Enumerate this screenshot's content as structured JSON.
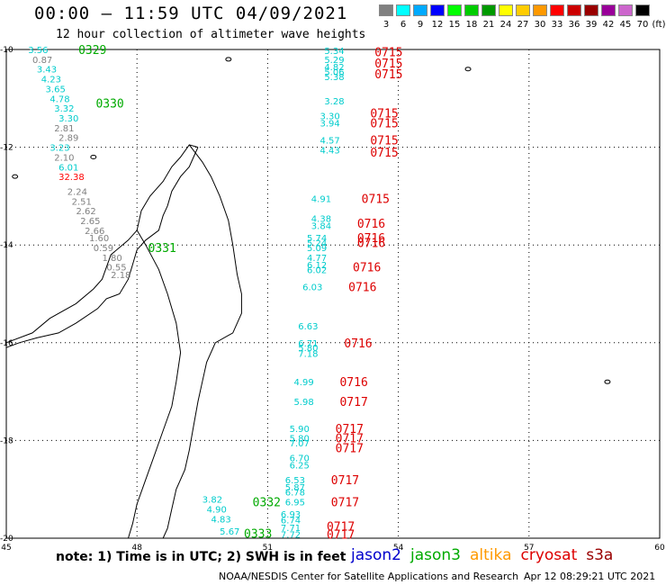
{
  "header": {
    "title": "00:00 – 11:59 UTC 04/09/2021",
    "subtitle": "12 hour collection of altimeter wave heights"
  },
  "legend": {
    "unit": "(ft)",
    "bins": [
      {
        "label": "3",
        "color": "#808080"
      },
      {
        "label": "6",
        "color": "#00ffff"
      },
      {
        "label": "9",
        "color": "#00aaff"
      },
      {
        "label": "12",
        "color": "#0000ff"
      },
      {
        "label": "15",
        "color": "#00ff00"
      },
      {
        "label": "18",
        "color": "#00cc00"
      },
      {
        "label": "21",
        "color": "#009900"
      },
      {
        "label": "24",
        "color": "#ffff00"
      },
      {
        "label": "27",
        "color": "#ffcc00"
      },
      {
        "label": "30",
        "color": "#ff9900"
      },
      {
        "label": "33",
        "color": "#ff0000"
      },
      {
        "label": "36",
        "color": "#cc0000"
      },
      {
        "label": "39",
        "color": "#990000"
      },
      {
        "label": "42",
        "color": "#990099"
      },
      {
        "label": "45",
        "color": "#cc66cc"
      },
      {
        "label": "70",
        "color": "#000000"
      }
    ]
  },
  "map": {
    "lon_range": [
      45,
      60
    ],
    "lat_range": [
      -20,
      -10
    ],
    "lon_ticks": [
      "45",
      "48",
      "51",
      "54",
      "57",
      "60"
    ],
    "lat_ticks": [
      "-10",
      "-12",
      "-14",
      "-16",
      "-18",
      "-20"
    ],
    "tracks": [
      {
        "satellite": "jason3",
        "times": [
          {
            "label": "0329",
            "lon": 46.2,
            "lat": -10.0
          },
          {
            "label": "0330",
            "lon": 46.6,
            "lat": -11.1
          },
          {
            "label": "0331",
            "lon": 47.8,
            "lat": -14.05
          },
          {
            "label": "0332",
            "lon": 50.2,
            "lat": -19.25
          },
          {
            "label": "0333",
            "lon": 50.0,
            "lat": -19.9
          }
        ],
        "values": [
          {
            "v": "3.56",
            "lon": 45.5,
            "lat": -10.0,
            "c": "#00cccc"
          },
          {
            "v": "0.87",
            "lon": 45.6,
            "lat": -10.2,
            "c": "#808080"
          },
          {
            "v": "3.43",
            "lon": 45.7,
            "lat": -10.4,
            "c": "#00cccc"
          },
          {
            "v": "4.23",
            "lon": 45.8,
            "lat": -10.6,
            "c": "#00cccc"
          },
          {
            "v": "3.65",
            "lon": 45.9,
            "lat": -10.8,
            "c": "#00cccc"
          },
          {
            "v": "4.78",
            "lon": 46.0,
            "lat": -11.0,
            "c": "#00cccc"
          },
          {
            "v": "3.32",
            "lon": 46.1,
            "lat": -11.2,
            "c": "#00cccc"
          },
          {
            "v": "3.30",
            "lon": 46.2,
            "lat": -11.4,
            "c": "#00cccc"
          },
          {
            "v": "2.81",
            "lon": 46.1,
            "lat": -11.6,
            "c": "#808080"
          },
          {
            "v": "2.89",
            "lon": 46.2,
            "lat": -11.8,
            "c": "#808080"
          },
          {
            "v": "3.23",
            "lon": 46.0,
            "lat": -12.0,
            "c": "#00cccc"
          },
          {
            "v": "2.10",
            "lon": 46.1,
            "lat": -12.2,
            "c": "#808080"
          },
          {
            "v": "6.01",
            "lon": 46.2,
            "lat": -12.4,
            "c": "#00cccc"
          },
          {
            "v": "32.38",
            "lon": 46.2,
            "lat": -12.6,
            "c": "#ff0000"
          },
          {
            "v": "2.24",
            "lon": 46.4,
            "lat": -12.9,
            "c": "#808080"
          },
          {
            "v": "2.51",
            "lon": 46.5,
            "lat": -13.1,
            "c": "#808080"
          },
          {
            "v": "2.62",
            "lon": 46.6,
            "lat": -13.3,
            "c": "#808080"
          },
          {
            "v": "2.65",
            "lon": 46.7,
            "lat": -13.5,
            "c": "#808080"
          },
          {
            "v": "2.66",
            "lon": 46.8,
            "lat": -13.7,
            "c": "#808080"
          },
          {
            "v": "1.60",
            "lon": 46.9,
            "lat": -13.85,
            "c": "#808080"
          },
          {
            "v": "0.59",
            "lon": 47.0,
            "lat": -14.05,
            "c": "#808080"
          },
          {
            "v": "1.80",
            "lon": 47.2,
            "lat": -14.25,
            "c": "#808080"
          },
          {
            "v": "0.55",
            "lon": 47.3,
            "lat": -14.45,
            "c": "#808080"
          },
          {
            "v": "2.18",
            "lon": 47.4,
            "lat": -14.6,
            "c": "#808080"
          },
          {
            "v": "3.82",
            "lon": 49.5,
            "lat": -19.2,
            "c": "#00cccc"
          },
          {
            "v": "4.90",
            "lon": 49.6,
            "lat": -19.4,
            "c": "#00cccc"
          },
          {
            "v": "4.83",
            "lon": 49.7,
            "lat": -19.6,
            "c": "#00cccc"
          },
          {
            "v": "5.67",
            "lon": 49.9,
            "lat": -19.85,
            "c": "#00cccc"
          }
        ]
      },
      {
        "satellite": "cryosat",
        "times": [
          {
            "label": "0715",
            "lon": 53.0,
            "lat": -10.05
          },
          {
            "label": "0715",
            "lon": 53.0,
            "lat": -10.28
          },
          {
            "label": "0715",
            "lon": 53.0,
            "lat": -10.5
          },
          {
            "label": "0715",
            "lon": 52.9,
            "lat": -11.3
          },
          {
            "label": "0715",
            "lon": 52.9,
            "lat": -11.5
          },
          {
            "label": "0715",
            "lon": 52.9,
            "lat": -11.85
          },
          {
            "label": "0715",
            "lon": 52.9,
            "lat": -12.1
          },
          {
            "label": "0715",
            "lon": 52.7,
            "lat": -13.05
          },
          {
            "label": "0716",
            "lon": 52.6,
            "lat": -13.55
          },
          {
            "label": "0716",
            "lon": 52.6,
            "lat": -13.85
          },
          {
            "label": "0716",
            "lon": 52.6,
            "lat": -13.95
          },
          {
            "label": "0716",
            "lon": 52.5,
            "lat": -14.45
          },
          {
            "label": "0716",
            "lon": 52.4,
            "lat": -14.85
          },
          {
            "label": "0716",
            "lon": 52.3,
            "lat": -16.0
          },
          {
            "label": "0716",
            "lon": 52.2,
            "lat": -16.8
          },
          {
            "label": "0717",
            "lon": 52.2,
            "lat": -17.2
          },
          {
            "label": "0717",
            "lon": 52.1,
            "lat": -17.75
          },
          {
            "label": "0717",
            "lon": 52.1,
            "lat": -17.95
          },
          {
            "label": "0717",
            "lon": 52.1,
            "lat": -18.15
          },
          {
            "label": "0717",
            "lon": 52.0,
            "lat": -18.8
          },
          {
            "label": "0717",
            "lon": 52.0,
            "lat": -19.25
          },
          {
            "label": "0717",
            "lon": 51.9,
            "lat": -19.75
          },
          {
            "label": "0717",
            "lon": 51.9,
            "lat": -19.92
          }
        ],
        "values": [
          {
            "v": "5.34",
            "lon": 52.3,
            "lat": -10.02,
            "c": "#00cccc"
          },
          {
            "v": "5.29",
            "lon": 52.3,
            "lat": -10.2,
            "c": "#00cccc"
          },
          {
            "v": "4.82",
            "lon": 52.3,
            "lat": -10.35,
            "c": "#00cccc"
          },
          {
            "v": "5.06",
            "lon": 52.3,
            "lat": -10.45,
            "c": "#00cccc"
          },
          {
            "v": "5.38",
            "lon": 52.3,
            "lat": -10.55,
            "c": "#00cccc"
          },
          {
            "v": "3.28",
            "lon": 52.3,
            "lat": -11.05,
            "c": "#00cccc"
          },
          {
            "v": "3.30",
            "lon": 52.2,
            "lat": -11.35,
            "c": "#00cccc"
          },
          {
            "v": "3.94",
            "lon": 52.2,
            "lat": -11.5,
            "c": "#00cccc"
          },
          {
            "v": "4.57",
            "lon": 52.2,
            "lat": -11.85,
            "c": "#00cccc"
          },
          {
            "v": "4.43",
            "lon": 52.2,
            "lat": -12.05,
            "c": "#00cccc"
          },
          {
            "v": "4.91",
            "lon": 52.0,
            "lat": -13.05,
            "c": "#00cccc"
          },
          {
            "v": "4.38",
            "lon": 52.0,
            "lat": -13.45,
            "c": "#00cccc"
          },
          {
            "v": "3.84",
            "lon": 52.0,
            "lat": -13.6,
            "c": "#00cccc"
          },
          {
            "v": "5.74",
            "lon": 51.9,
            "lat": -13.85,
            "c": "#00cccc"
          },
          {
            "v": "5.24",
            "lon": 51.9,
            "lat": -13.95,
            "c": "#00cccc"
          },
          {
            "v": "5.09",
            "lon": 51.9,
            "lat": -14.05,
            "c": "#00cccc"
          },
          {
            "v": "4.77",
            "lon": 51.9,
            "lat": -14.25,
            "c": "#00cccc"
          },
          {
            "v": "6.12",
            "lon": 51.9,
            "lat": -14.4,
            "c": "#00cccc"
          },
          {
            "v": "6.02",
            "lon": 51.9,
            "lat": -14.5,
            "c": "#00cccc"
          },
          {
            "v": "6.03",
            "lon": 51.8,
            "lat": -14.85,
            "c": "#00cccc"
          },
          {
            "v": "6.63",
            "lon": 51.7,
            "lat": -15.65,
            "c": "#00cccc"
          },
          {
            "v": "6.71",
            "lon": 51.7,
            "lat": -16.0,
            "c": "#00cccc"
          },
          {
            "v": "5.80",
            "lon": 51.7,
            "lat": -16.1,
            "c": "#00cccc"
          },
          {
            "v": "7.18",
            "lon": 51.7,
            "lat": -16.22,
            "c": "#00cccc"
          },
          {
            "v": "4.99",
            "lon": 51.6,
            "lat": -16.8,
            "c": "#00cccc"
          },
          {
            "v": "5.98",
            "lon": 51.6,
            "lat": -17.2,
            "c": "#00cccc"
          },
          {
            "v": "5.90",
            "lon": 51.5,
            "lat": -17.75,
            "c": "#00cccc"
          },
          {
            "v": "5.80",
            "lon": 51.5,
            "lat": -17.95,
            "c": "#00cccc"
          },
          {
            "v": "7.07",
            "lon": 51.5,
            "lat": -18.05,
            "c": "#00cccc"
          },
          {
            "v": "6.70",
            "lon": 51.5,
            "lat": -18.35,
            "c": "#00cccc"
          },
          {
            "v": "6.25",
            "lon": 51.5,
            "lat": -18.5,
            "c": "#00cccc"
          },
          {
            "v": "6.53",
            "lon": 51.4,
            "lat": -18.8,
            "c": "#00cccc"
          },
          {
            "v": "5.87",
            "lon": 51.4,
            "lat": -18.95,
            "c": "#00cccc"
          },
          {
            "v": "6.78",
            "lon": 51.4,
            "lat": -19.05,
            "c": "#00cccc"
          },
          {
            "v": "6.95",
            "lon": 51.4,
            "lat": -19.25,
            "c": "#00cccc"
          },
          {
            "v": "6.93",
            "lon": 51.3,
            "lat": -19.5,
            "c": "#00cccc"
          },
          {
            "v": "6.74",
            "lon": 51.3,
            "lat": -19.62,
            "c": "#00cccc"
          },
          {
            "v": "7.71",
            "lon": 51.3,
            "lat": -19.78,
            "c": "#00cccc"
          },
          {
            "v": "7.72",
            "lon": 51.3,
            "lat": -19.92,
            "c": "#00cccc"
          }
        ]
      }
    ]
  },
  "footer": {
    "note": "note: 1) Time is in UTC; 2) SWH is in feet",
    "satellites": [
      {
        "name": "jason2",
        "color": "#0000cc"
      },
      {
        "name": "jason3",
        "color": "#00aa00"
      },
      {
        "name": "altika",
        "color": "#ff9900"
      },
      {
        "name": "cryosat",
        "color": "#dd0000"
      },
      {
        "name": "s3a",
        "color": "#990000"
      }
    ],
    "credit": "NOAA/NESDIS Center for Satellite Applications and Research",
    "stamp": "Apr 12 08:29:21 UTC 2021"
  }
}
